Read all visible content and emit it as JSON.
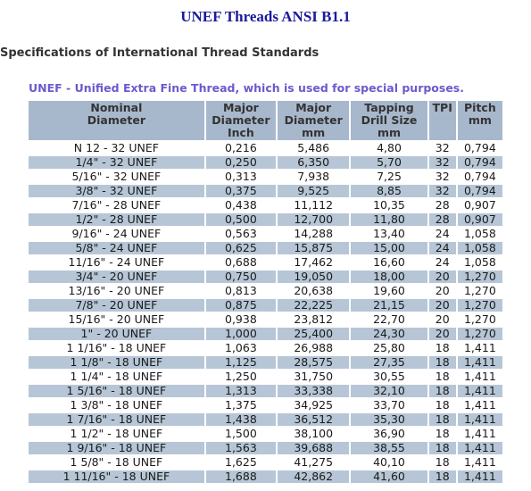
{
  "title": "UNEF Threads ANSI B1.1",
  "subtitle": "Specifications of International Thread Standards",
  "caption": "UNEF - Unified Extra Fine Thread, which is used for special purposes.",
  "table": {
    "headers": [
      [
        "Nominal",
        "Diameter",
        ""
      ],
      [
        "Major",
        "Diameter",
        "Inch"
      ],
      [
        "Major",
        "Diameter",
        "mm"
      ],
      [
        "Tapping",
        "Drill Size",
        "mm"
      ],
      [
        "TPI",
        "",
        ""
      ],
      [
        "Pitch",
        "mm",
        ""
      ]
    ],
    "rows": [
      [
        "N 12 - 32 UNEF",
        "0,216",
        "5,486",
        "4,80",
        "32",
        "0,794"
      ],
      [
        "1/4\" - 32 UNEF",
        "0,250",
        "6,350",
        "5,70",
        "32",
        "0,794"
      ],
      [
        "5/16\" - 32 UNEF",
        "0,313",
        "7,938",
        "7,25",
        "32",
        "0,794"
      ],
      [
        "3/8\" - 32 UNEF",
        "0,375",
        "9,525",
        "8,85",
        "32",
        "0,794"
      ],
      [
        "7/16\" - 28 UNEF",
        "0,438",
        "11,112",
        "10,35",
        "28",
        "0,907"
      ],
      [
        "1/2\" - 28 UNEF",
        "0,500",
        "12,700",
        "11,80",
        "28",
        "0,907"
      ],
      [
        "9/16\" - 24 UNEF",
        "0,563",
        "14,288",
        "13,40",
        "24",
        "1,058"
      ],
      [
        "5/8\" - 24 UNEF",
        "0,625",
        "15,875",
        "15,00",
        "24",
        "1,058"
      ],
      [
        "11/16\" - 24 UNEF",
        "0,688",
        "17,462",
        "16,60",
        "24",
        "1,058"
      ],
      [
        "3/4\" - 20 UNEF",
        "0,750",
        "19,050",
        "18,00",
        "20",
        "1,270"
      ],
      [
        "13/16\" - 20 UNEF",
        "0,813",
        "20,638",
        "19,60",
        "20",
        "1,270"
      ],
      [
        "7/8\" - 20 UNEF",
        "0,875",
        "22,225",
        "21,15",
        "20",
        "1,270"
      ],
      [
        "15/16\" - 20 UNEF",
        "0,938",
        "23,812",
        "22,70",
        "20",
        "1,270"
      ],
      [
        "1\" - 20 UNEF",
        "1,000",
        "25,400",
        "24,30",
        "20",
        "1,270"
      ],
      [
        "1 1/16\" - 18 UNEF",
        "1,063",
        "26,988",
        "25,80",
        "18",
        "1,411"
      ],
      [
        "1 1/8\" - 18 UNEF",
        "1,125",
        "28,575",
        "27,35",
        "18",
        "1,411"
      ],
      [
        "1 1/4\" - 18 UNEF",
        "1,250",
        "31,750",
        "30,55",
        "18",
        "1,411"
      ],
      [
        "1 5/16\" - 18 UNEF",
        "1,313",
        "33,338",
        "32,10",
        "18",
        "1,411"
      ],
      [
        "1 3/8\" - 18 UNEF",
        "1,375",
        "34,925",
        "33,70",
        "18",
        "1,411"
      ],
      [
        "1 7/16\" - 18 UNEF",
        "1,438",
        "36,512",
        "35,30",
        "18",
        "1,411"
      ],
      [
        "1 1/2\" - 18 UNEF",
        "1,500",
        "38,100",
        "36,90",
        "18",
        "1,411"
      ],
      [
        "1 9/16\" - 18 UNEF",
        "1,563",
        "39,688",
        "38,55",
        "18",
        "1,411"
      ],
      [
        "1 5/8\" - 18 UNEF",
        "1,625",
        "41,275",
        "40,10",
        "18",
        "1,411"
      ],
      [
        "1 11/16\" - 18 UNEF",
        "1,688",
        "42,862",
        "41,60",
        "18",
        "1,411"
      ]
    ]
  }
}
